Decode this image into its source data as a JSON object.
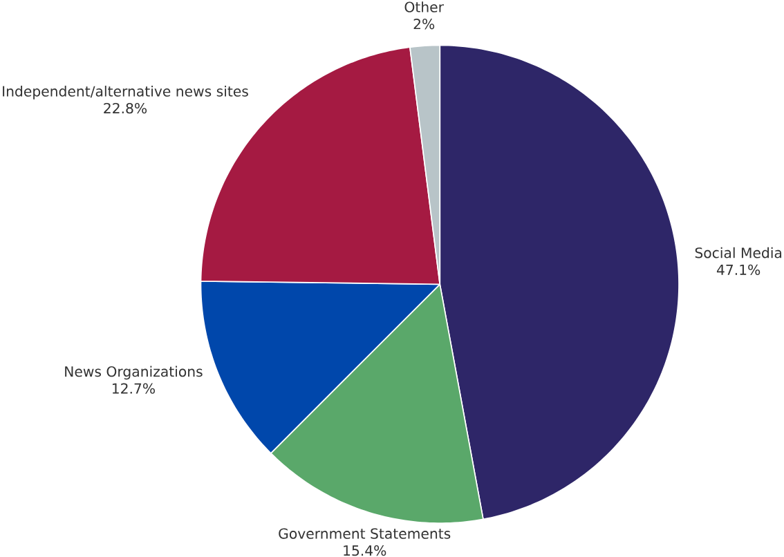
{
  "chart_data": {
    "type": "pie",
    "categories": [
      "Social Media",
      "Government Statements",
      "News Organizations",
      "Independent/alternative news sites",
      "Other"
    ],
    "values": [
      47.1,
      15.4,
      12.7,
      22.8,
      2
    ],
    "value_labels": [
      "47.1%",
      "15.4%",
      "12.7%",
      "22.8%",
      "2%"
    ],
    "colors": [
      "#2e2668",
      "#5aa86a",
      "#0047ab",
      "#a51a42",
      "#b8c4c8"
    ]
  }
}
